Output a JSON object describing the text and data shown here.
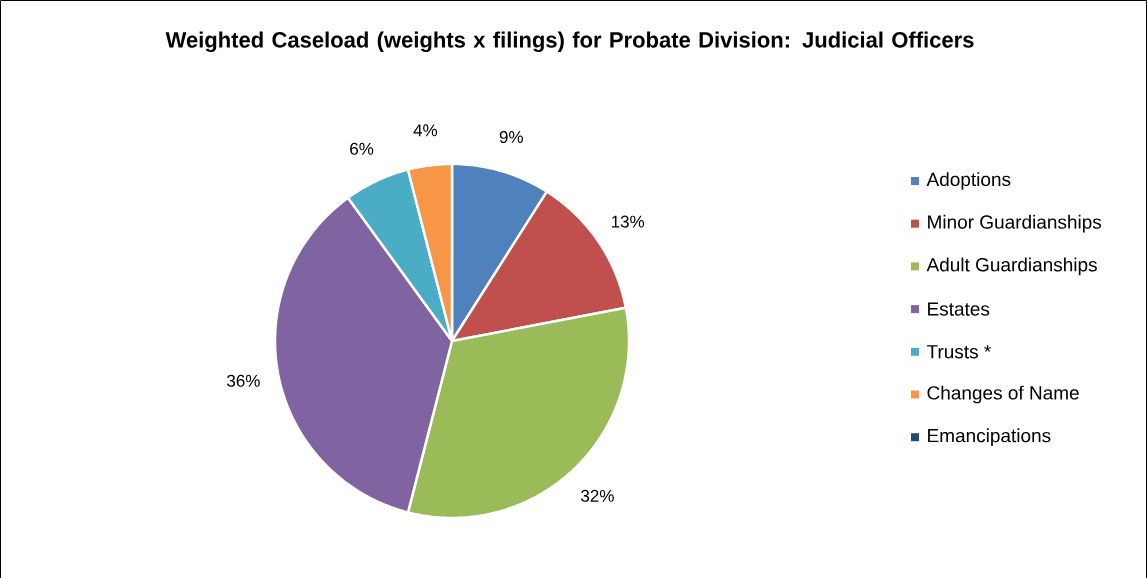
{
  "chart_data": {
    "type": "pie",
    "title": "Weighted Caseload (weights x filings) for Probate Division: Judicial Officers",
    "categories": [
      "Adoptions",
      "Minor Guardianships",
      "Adult Guardianships",
      "Estates",
      "Trusts *",
      "Changes of Name",
      "Emancipations"
    ],
    "values": [
      9,
      13,
      32,
      36,
      6,
      4,
      0
    ],
    "colors": [
      "#4f81bd",
      "#c0504d",
      "#9bbb59",
      "#8064a2",
      "#4bacc6",
      "#f79646",
      "#1f497d"
    ],
    "value_labels": [
      "9%",
      "13%",
      "32%",
      "36%",
      "6%",
      "4%",
      null
    ],
    "legend": "right"
  }
}
